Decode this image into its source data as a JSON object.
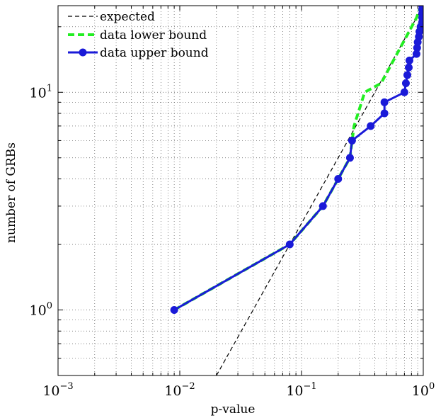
{
  "chart_data": {
    "type": "line",
    "title": "",
    "xlabel": "p-value",
    "ylabel": "number of GRBs",
    "xscale": "log",
    "yscale": "log",
    "xlim": [
      0.001,
      1
    ],
    "ylim": [
      0.5,
      25
    ],
    "grid": true,
    "legend_position": "top-left",
    "x_ticks": [
      {
        "value": 0.001,
        "base": "10",
        "exp": "−3"
      },
      {
        "value": 0.01,
        "base": "10",
        "exp": "−2"
      },
      {
        "value": 0.1,
        "base": "10",
        "exp": "−1"
      },
      {
        "value": 1,
        "base": "10",
        "exp": "0"
      }
    ],
    "y_ticks": [
      {
        "value": 1,
        "base": "10",
        "exp": "0"
      },
      {
        "value": 10,
        "base": "10",
        "exp": "1"
      }
    ],
    "series": [
      {
        "name": "expected",
        "style": "dashed",
        "color": "#000000",
        "x": [
          0.02,
          1
        ],
        "y": [
          0.5,
          25
        ]
      },
      {
        "name": "data lower bound",
        "style": "dashed-thick",
        "color": "#22ee22",
        "x": [
          0.009,
          0.08,
          0.15,
          0.2,
          0.25,
          0.27,
          0.33,
          0.45,
          0.88,
          0.93,
          1.0
        ],
        "y": [
          1,
          2,
          3,
          4,
          5,
          7,
          10,
          11,
          22,
          24,
          25
        ]
      },
      {
        "name": "data upper bound",
        "style": "solid-markers",
        "color": "#1a1ad8",
        "x": [
          0.009,
          0.08,
          0.15,
          0.2,
          0.25,
          0.26,
          0.37,
          0.48,
          0.48,
          0.7,
          0.72,
          0.74,
          0.76,
          0.77,
          0.88,
          0.89,
          0.9,
          0.92,
          0.93,
          0.95,
          0.98,
          0.98,
          0.98,
          0.98,
          0.98
        ],
        "y": [
          1,
          2,
          3,
          4,
          5,
          6,
          7,
          8,
          9,
          10,
          11,
          12,
          13,
          14,
          15,
          16,
          17,
          18,
          19,
          20,
          21,
          22,
          23,
          24,
          25
        ]
      }
    ]
  }
}
